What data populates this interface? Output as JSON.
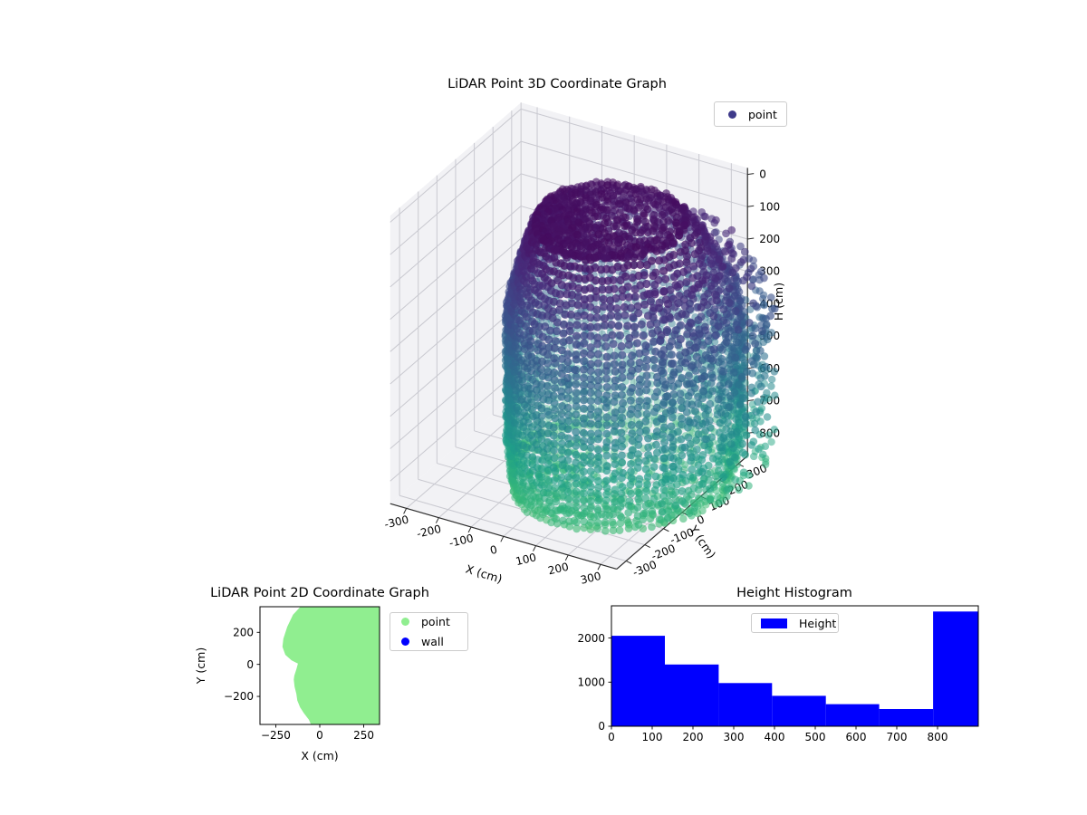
{
  "figure": {
    "background": "#ffffff",
    "description": "Matplotlib-style figure with a 3D LiDAR point cloud, a 2D LiDAR coordinate scatter, and a height histogram"
  },
  "chart_data": [
    {
      "id": "plot3d",
      "type": "scatter",
      "projection": "3d",
      "title": "LiDAR Point 3D Coordinate Graph",
      "xlabel": "X (cm)",
      "ylabel": "Y (cm)",
      "zlabel": "H (cm)",
      "x_ticks": [
        -300,
        -200,
        -100,
        0,
        100,
        200,
        300
      ],
      "y_ticks": [
        -300,
        -200,
        -100,
        0,
        100,
        200,
        300
      ],
      "z_ticks": [
        0,
        100,
        200,
        300,
        400,
        500,
        600,
        700,
        800
      ],
      "x_range": [
        -350,
        350
      ],
      "y_range": [
        -350,
        350
      ],
      "z_range": [
        -20,
        870
      ],
      "z_axis_inverted": true,
      "view": {
        "elev": 30,
        "azim": -60
      },
      "legend": [
        {
          "label": "point",
          "color": "#3e3a8a"
        }
      ],
      "colormap": "viridis",
      "pane_color": "#f2f2f5",
      "grid_color": "#c9c9d0",
      "axis_line_color": "#2b2b2b",
      "cloud": {
        "shape": "domed cylindrical room scan with ceiling cap, walls and floor",
        "color_by": "height",
        "color_norm_max": 1100,
        "center_xy": [
          60,
          0
        ],
        "base_radius_cm": 290,
        "right_bulge_factor": 1.42,
        "left_dent_factor": 0.74,
        "ceiling_height_cm": 55,
        "floor_height_cm": 810,
        "wall_columns": 92,
        "rows_per_column": 34,
        "ceiling_rings": 10,
        "floor_rings": 9,
        "bulge_columns": 26,
        "interior_outliers": 32,
        "point_alpha": 0.55,
        "point_radius_px": 4.2
      }
    },
    {
      "id": "plot2d",
      "type": "scatter",
      "title": "LiDAR Point 2D Coordinate Graph",
      "xlabel": "X (cm)",
      "ylabel": "Y (cm)",
      "x_ticks": [
        -250,
        0,
        250
      ],
      "y_ticks": [
        200,
        0,
        -200
      ],
      "x_range": [
        -340,
        340
      ],
      "y_range": [
        -375,
        360
      ],
      "legend": [
        {
          "label": "point",
          "color": "#90EE90"
        },
        {
          "label": "wall",
          "color": "#0000FF"
        }
      ],
      "region": {
        "fill": "#90EE90",
        "note": "dense point region occupying right side of axes, scalloped range-limit boundary on left",
        "boundary_points_xy": [
          [
            -110,
            360
          ],
          [
            -152,
            310
          ],
          [
            -185,
            235
          ],
          [
            -207,
            160
          ],
          [
            -212,
            110
          ],
          [
            -196,
            60
          ],
          [
            -160,
            25
          ],
          [
            -124,
            5
          ],
          [
            -133,
            -30
          ],
          [
            -145,
            -70
          ],
          [
            -148,
            -95
          ],
          [
            -143,
            -140
          ],
          [
            -133,
            -185
          ],
          [
            -128,
            -225
          ],
          [
            -112,
            -268
          ],
          [
            -90,
            -305
          ],
          [
            -62,
            -345
          ],
          [
            -50,
            -375
          ]
        ],
        "closes_along": [
          [
            340,
            -375
          ],
          [
            340,
            360
          ]
        ]
      }
    },
    {
      "id": "hist",
      "type": "bar",
      "title": "Height Histogram",
      "legend": [
        {
          "label": "Height",
          "color": "#0000FF"
        }
      ],
      "bar_color": "#0000FF",
      "bin_edges": [
        0,
        131,
        263,
        394,
        526,
        657,
        789,
        920
      ],
      "counts": [
        2050,
        1400,
        980,
        690,
        500,
        390,
        2600
      ],
      "x_ticks": [
        0,
        100,
        200,
        300,
        400,
        500,
        600,
        700,
        800
      ],
      "y_ticks": [
        0,
        1000,
        2000
      ],
      "x_range": [
        0,
        900
      ],
      "y_range": [
        0,
        2730
      ]
    }
  ]
}
